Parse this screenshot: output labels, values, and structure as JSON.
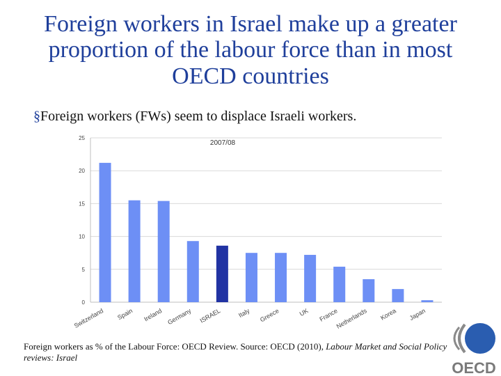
{
  "slide": {
    "title": "Foreign workers in Israel make up a greater proportion of the labour force than in most OECD countries",
    "bullet_marker": "§",
    "bullet": "Foreign workers (FWs) seem to displace Israeli workers.",
    "caption_plain": "Foreign workers as % of the Labour Force: OECD Review. Source: OECD (2010), ",
    "caption_italic": "Labour Market and Social Policy reviews: Israel",
    "logo_text": "OECD"
  },
  "chart_data": {
    "type": "bar",
    "title": "2007/08",
    "categories": [
      "Switzerland",
      "Spain",
      "Ireland",
      "Germany",
      "ISRAEL",
      "Italy",
      "Greece",
      "UK",
      "France",
      "Netherlands",
      "Korea",
      "Japan"
    ],
    "values": [
      21.2,
      15.5,
      15.4,
      9.3,
      8.6,
      7.5,
      7.5,
      7.2,
      5.4,
      3.5,
      2.0,
      0.3
    ],
    "ylim": [
      0,
      25
    ],
    "yticks": [
      0,
      5,
      10,
      15,
      20,
      25
    ],
    "grid": true,
    "legend": "none",
    "colors": {
      "bar": "#6d8ff5",
      "highlight": "#2133a3",
      "grid": "#d9d9d9",
      "axis": "#bfbfbf"
    },
    "highlight_category": "ISRAEL"
  }
}
